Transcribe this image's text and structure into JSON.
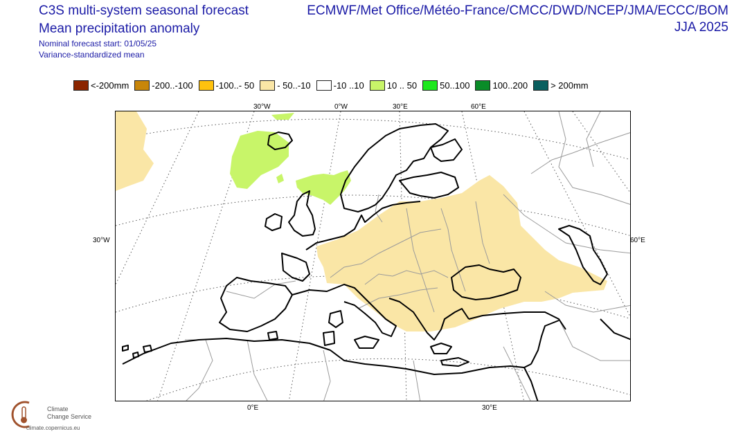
{
  "header": {
    "title_line1": "C3S multi-system seasonal forecast",
    "title_line2": "Mean precipitation anomaly",
    "subtitle_line1": "Nominal forecast start: 01/05/25",
    "subtitle_line2": "Variance-standardized mean",
    "centres": "ECMWF/Met Office/Météo-France/CMCC/DWD/NCEP/JMA/ECCC/BOM",
    "season": "JJA 2025"
  },
  "legend": [
    {
      "label": "<-200mm",
      "color": "#8b2500"
    },
    {
      "label": "-200..-100",
      "color": "#c8860a"
    },
    {
      "label": "-100..- 50",
      "color": "#ffc20e"
    },
    {
      "label": "- 50..-10",
      "color": "#fae6a6"
    },
    {
      "label": "-10 ..10",
      "color": "#ffffff"
    },
    {
      "label": "10 .. 50",
      "color": "#c8f569"
    },
    {
      "label": "50..100",
      "color": "#1ee81e"
    },
    {
      "label": "100..200",
      "color": "#0a8c28"
    },
    {
      "label": "> 200mm",
      "color": "#0a5f5f"
    }
  ],
  "graticule": {
    "top": [
      "30°W",
      "0°W",
      "30°E",
      "60°E"
    ],
    "left": "30°W",
    "right": "60°E",
    "bottom": [
      "0°E",
      "30°E"
    ]
  },
  "logo": {
    "line1": "Climate",
    "line2": "Change Service",
    "url": "climate.copernicus.eu"
  },
  "colors": {
    "header_text": "#1a1aa6",
    "anomaly_dry": "#fae6a6",
    "anomaly_wet": "#c8f569",
    "coast": "#000000",
    "borders": "#9a9a9a"
  }
}
